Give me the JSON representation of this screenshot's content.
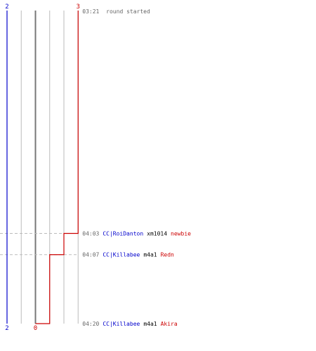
{
  "chart_data": {
    "type": "line",
    "title": "",
    "xlabel": "",
    "ylabel": "",
    "x_range": [
      2,
      3
    ],
    "y_range": [
      "03:21",
      "04:20"
    ],
    "x_tick_labels": {
      "blue_top": "2",
      "blue_bottom": "2",
      "red_top": "3",
      "red_bottom": "0"
    },
    "grid": true,
    "colors": {
      "blue_team": "#0000cc",
      "red_team": "#cc0000",
      "grid": "#bbbbbb",
      "zero_line": "#777777",
      "time": "#666666",
      "weapon": "#000000"
    },
    "start_event": {
      "time": "03:21",
      "text": "round started"
    },
    "series": [
      {
        "color": "#0000cc",
        "points": [
          {
            "t": "03:21",
            "value": 2
          },
          {
            "t": "04:20",
            "value": 2
          }
        ]
      },
      {
        "color": "#cc0000",
        "points": [
          {
            "t": "03:21",
            "value": 3
          },
          {
            "t": "04:03",
            "value": 3
          },
          {
            "t": "04:03",
            "value": 2
          },
          {
            "t": "04:07",
            "value": 2
          },
          {
            "t": "04:07",
            "value": 1
          },
          {
            "t": "04:20",
            "value": 1
          },
          {
            "t": "04:20",
            "value": 0
          }
        ]
      }
    ],
    "events": [
      {
        "time": "04:03",
        "killer": "CC|RoiDanton",
        "weapon": "xm1014",
        "victim": "newbie"
      },
      {
        "time": "04:07",
        "killer": "CC|Killabee",
        "weapon": "m4a1",
        "victim": "Redn"
      },
      {
        "time": "04:20",
        "killer": "CC|Killabee",
        "weapon": "m4a1",
        "victim": "Akira"
      }
    ]
  }
}
